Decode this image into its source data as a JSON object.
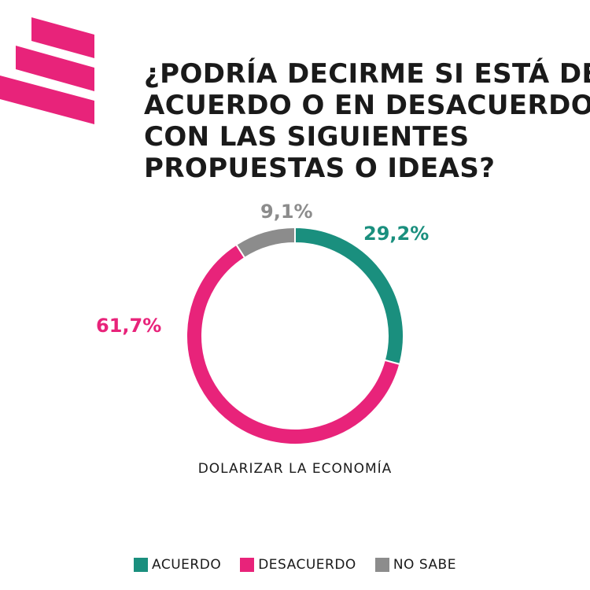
{
  "title_lines": [
    "¿PODRÍA DECIRME SI ESTÁ DE",
    "ACUERDO O EN DESACUERDO",
    "CON LAS SIGUIENTES",
    "PROPUESTAS O IDEAS?"
  ],
  "logo": {
    "icon": "striped-brand-logo-icon",
    "color": "#e8237a"
  },
  "chart_data": {
    "type": "pie",
    "categories": [
      "ACUERDO",
      "DESACUERDO",
      "NO SABE"
    ],
    "values": [
      29.2,
      61.7,
      9.1
    ],
    "value_labels": [
      "29,2%",
      "61,7%",
      "9,1%"
    ],
    "colors": [
      "#1a8f7e",
      "#e8237a",
      "#8c8c8c"
    ],
    "chart_label": "DOLARIZAR LA ECONOMÍA",
    "legend_position": "bottom"
  }
}
